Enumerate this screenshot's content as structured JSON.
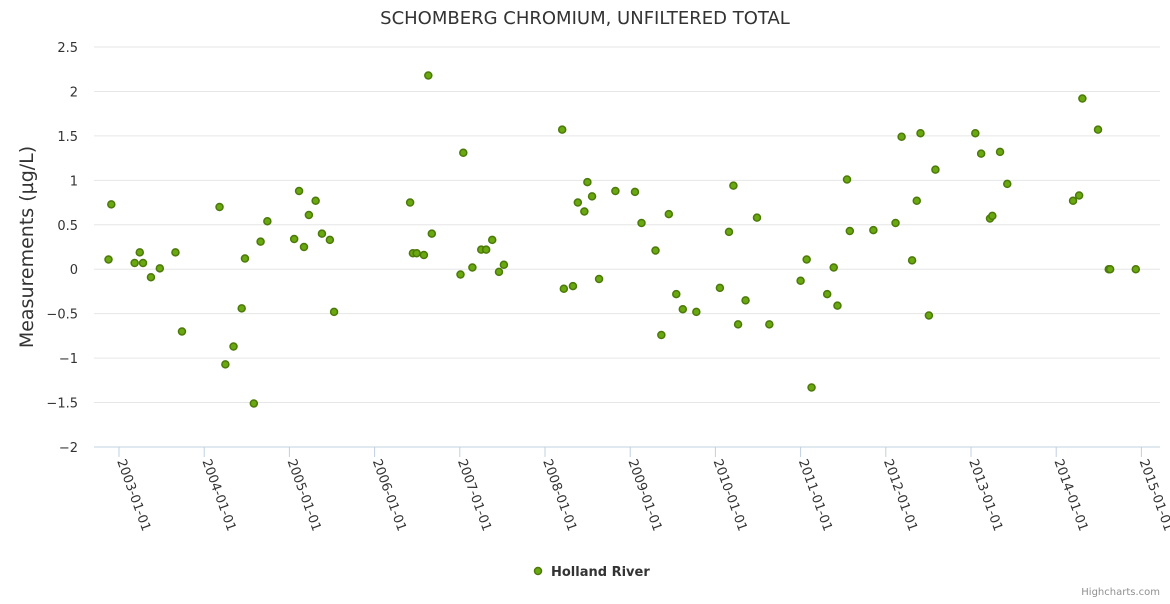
{
  "chart_data": {
    "type": "scatter",
    "title": "SCHOMBERG CHROMIUM, UNFILTERED TOTAL",
    "xlabel": "",
    "ylabel": "Measurements (µg/L)",
    "ylim": [
      -2,
      2.5
    ],
    "yticks": [
      "2.5",
      "2",
      "1.5",
      "1",
      "0.5",
      "0",
      "−0.5",
      "−1",
      "−1.5",
      "−2"
    ],
    "xlim": [
      "2002-10-20",
      "2015-01-01"
    ],
    "xticks": [
      "2003-01-01",
      "2004-01-01",
      "2005-01-01",
      "2006-01-01",
      "2007-01-01",
      "2008-01-01",
      "2009-01-01",
      "2010-01-01",
      "2011-01-01",
      "2012-01-01",
      "2013-01-01",
      "2014-01-01",
      "2015-01-01"
    ],
    "grid": true,
    "legend_position": "bottom-center",
    "series_color": "#6aa80f",
    "series": [
      {
        "name": "Holland River",
        "x": [
          "2002-11-17",
          "2002-11-29",
          "2003-03-09",
          "2003-03-31",
          "2003-04-14",
          "2003-05-18",
          "2003-06-25",
          "2003-08-31",
          "2003-09-28",
          "2004-03-07",
          "2004-04-01",
          "2004-05-06",
          "2004-06-10",
          "2004-06-24",
          "2004-08-01",
          "2004-08-30",
          "2004-09-28",
          "2005-01-21",
          "2005-02-11",
          "2005-03-04",
          "2005-03-25",
          "2005-04-23",
          "2005-05-20",
          "2005-06-23",
          "2005-07-11",
          "2006-06-02",
          "2006-06-14",
          "2006-06-30",
          "2006-07-31",
          "2006-08-19",
          "2006-09-03",
          "2007-01-04",
          "2007-01-16",
          "2007-02-24",
          "2007-04-03",
          "2007-04-24",
          "2007-05-20",
          "2007-06-18",
          "2007-07-09",
          "2008-03-15",
          "2008-03-22",
          "2008-04-30",
          "2008-05-21",
          "2008-06-18",
          "2008-07-01",
          "2008-07-21",
          "2008-08-20",
          "2008-10-29",
          "2009-01-21",
          "2009-02-18",
          "2009-04-19",
          "2009-05-14",
          "2009-06-15",
          "2009-07-17",
          "2009-08-14",
          "2009-10-11",
          "2010-01-20",
          "2010-02-28",
          "2010-03-19",
          "2010-04-08",
          "2010-05-10",
          "2010-06-28",
          "2010-08-20",
          "2011-01-01",
          "2011-01-27",
          "2011-02-17",
          "2011-04-25",
          "2011-05-23",
          "2011-06-08",
          "2011-07-19",
          "2011-07-31",
          "2011-11-09",
          "2012-02-12",
          "2012-03-09",
          "2012-04-23",
          "2012-05-13",
          "2012-05-29",
          "2012-07-04",
          "2012-08-01",
          "2013-01-19",
          "2013-02-13",
          "2013-03-23",
          "2013-04-02",
          "2013-05-05",
          "2013-06-05",
          "2014-03-14",
          "2014-04-09",
          "2014-04-23",
          "2014-06-29",
          "2014-08-14",
          "2014-08-20",
          "2014-12-08"
        ],
        "y": [
          0.11,
          0.73,
          0.07,
          0.19,
          0.07,
          -0.09,
          0.01,
          0.19,
          -0.7,
          0.7,
          -1.07,
          -0.87,
          -0.44,
          0.12,
          -1.51,
          0.31,
          0.54,
          0.34,
          0.88,
          0.25,
          0.61,
          0.77,
          0.4,
          0.33,
          -0.48,
          0.75,
          0.18,
          0.18,
          0.16,
          2.18,
          0.4,
          -0.06,
          1.31,
          0.02,
          0.22,
          0.22,
          0.33,
          -0.03,
          0.05,
          1.57,
          -0.22,
          -0.19,
          0.75,
          0.65,
          0.98,
          0.82,
          -0.11,
          0.88,
          0.87,
          0.52,
          0.21,
          -0.74,
          0.62,
          -0.28,
          -0.45,
          -0.48,
          -0.21,
          0.42,
          0.94,
          -0.62,
          -0.35,
          0.58,
          -0.62,
          -0.13,
          0.11,
          -1.33,
          -0.28,
          0.02,
          -0.41,
          1.01,
          0.43,
          0.44,
          0.52,
          1.49,
          0.1,
          0.77,
          1.53,
          -0.52,
          1.12,
          1.53,
          1.3,
          0.57,
          0.6,
          1.32,
          0.96,
          0.77,
          0.83,
          1.92,
          1.57,
          0.0,
          0.0,
          0.0
        ]
      }
    ]
  },
  "credits": "Highcharts.com"
}
